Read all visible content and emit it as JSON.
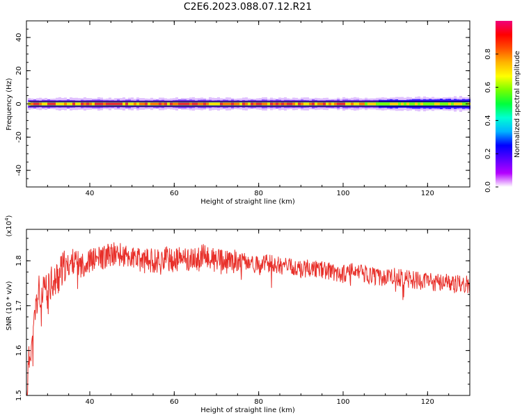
{
  "figure": {
    "title": "C2E6.2023.088.07.12.R21"
  },
  "chart_data": [
    {
      "type": "heatmap",
      "xlabel": "Height of straight line (km)",
      "ylabel": "Frequency (Hz)",
      "xlim": [
        25,
        130
      ],
      "ylim": [
        -50,
        50
      ],
      "xticks": [
        40,
        60,
        80,
        100,
        120
      ],
      "xtick_labels": [
        "40",
        "60",
        "80",
        "100",
        "120"
      ],
      "yticks": [
        -40,
        -20,
        0,
        20,
        40
      ],
      "ytick_labels": [
        "-40",
        "-20",
        "0",
        "20",
        "40"
      ],
      "grid": false,
      "colorbar": {
        "label": "Normalized spectral amplitude",
        "range": [
          0,
          1
        ],
        "ticks": [
          0.0,
          0.2,
          0.4,
          0.6,
          0.8
        ],
        "tick_labels": [
          "0.0",
          "0.2",
          "0.4",
          "0.6",
          "0.8"
        ],
        "colormap": [
          "#ffffff",
          "#b400ff",
          "#5a00ff",
          "#0000ff",
          "#00b4ff",
          "#00ffd2",
          "#00ff3c",
          "#78ff00",
          "#ffff00",
          "#ffb400",
          "#ff5000",
          "#ff0000",
          "#f0007a"
        ]
      },
      "signal": {
        "center_frequency_hz": 0,
        "core_halfwidth_hz": 1,
        "spread_halfwidth_hz": 3,
        "peak_color": "#e53030"
      }
    },
    {
      "type": "line",
      "xlabel": "Height of straight line (km)",
      "ylabel": "SNR (10 * v/v)",
      "y_multiplier_label": "(x10",
      "y_multiplier_exponent": "4",
      "y_multiplier_close": ")",
      "xlim": [
        25,
        130
      ],
      "ylim": [
        1.5,
        1.87
      ],
      "xticks": [
        40,
        60,
        80,
        100,
        120
      ],
      "xtick_labels": [
        "40",
        "60",
        "80",
        "100",
        "120"
      ],
      "yticks": [
        1.5,
        1.6,
        1.7,
        1.8
      ],
      "ytick_labels": [
        "1.5",
        "1.6",
        "1.7",
        "1.8"
      ],
      "grid": false,
      "series": [
        {
          "color": "#e8302a",
          "x": [
            25,
            25.5,
            26,
            26.5,
            27,
            27.5,
            28,
            28.5,
            29,
            29.5,
            30,
            30.5,
            31,
            31.5,
            32,
            33,
            34,
            35,
            36,
            38,
            40,
            42,
            44,
            46,
            48,
            50,
            52,
            55,
            58,
            60,
            62,
            65,
            67,
            70,
            72,
            75,
            78,
            80,
            82,
            85,
            88,
            90,
            92,
            95,
            98,
            100,
            102,
            105,
            108,
            110,
            112,
            115,
            118,
            120,
            122,
            124,
            125,
            126,
            127,
            128,
            129,
            130
          ],
          "y": [
            1.5,
            1.56,
            1.62,
            1.6,
            1.68,
            1.71,
            1.73,
            1.69,
            1.72,
            1.74,
            1.71,
            1.75,
            1.77,
            1.74,
            1.76,
            1.77,
            1.78,
            1.79,
            1.8,
            1.79,
            1.8,
            1.805,
            1.81,
            1.815,
            1.81,
            1.805,
            1.8,
            1.8,
            1.805,
            1.8,
            1.805,
            1.8,
            1.81,
            1.8,
            1.795,
            1.8,
            1.795,
            1.79,
            1.795,
            1.79,
            1.785,
            1.78,
            1.785,
            1.78,
            1.775,
            1.77,
            1.775,
            1.77,
            1.765,
            1.76,
            1.765,
            1.76,
            1.755,
            1.755,
            1.75,
            1.755,
            1.75,
            1.745,
            1.75,
            1.745,
            1.75,
            1.745
          ]
        }
      ]
    }
  ]
}
